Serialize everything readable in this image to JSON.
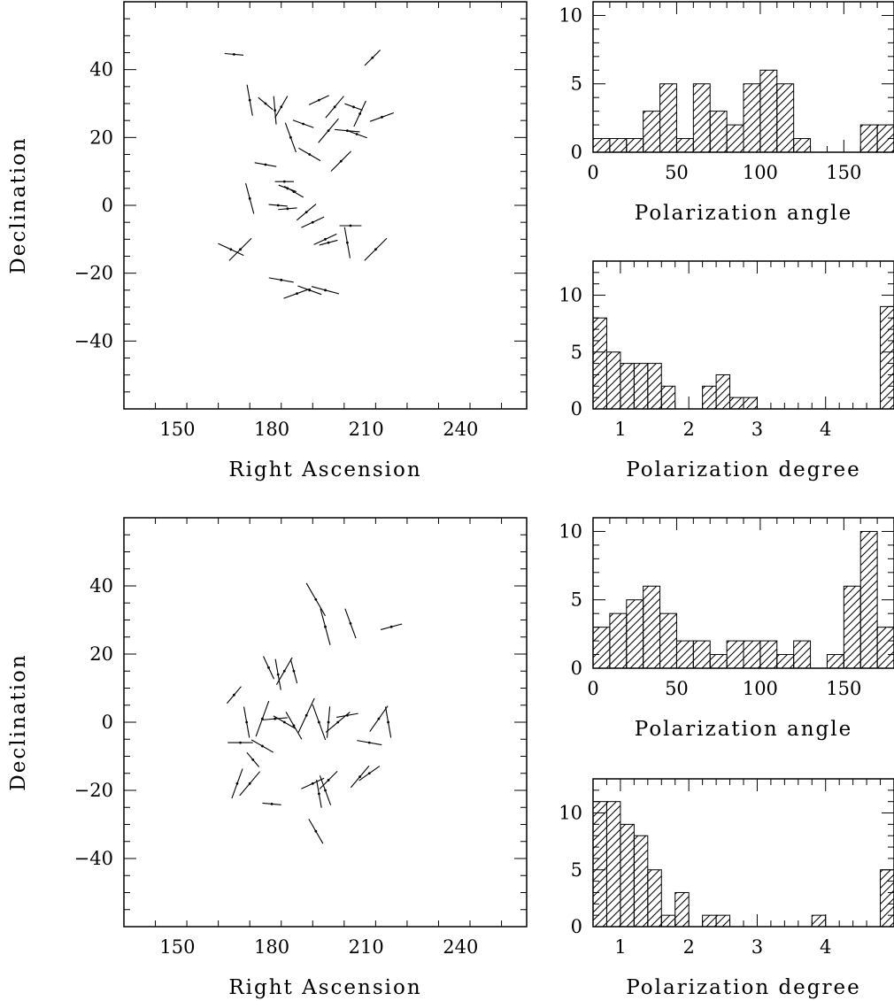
{
  "chart_data": [
    {
      "id": "sky-top",
      "type": "scatter",
      "marker": "polarization-vector",
      "xlabel": "Right Ascension",
      "ylabel": "Declination",
      "xlim": [
        133,
        261
      ],
      "ylim": [
        -60,
        60
      ],
      "xticks": [
        150,
        180,
        210,
        240
      ],
      "yticks": [
        -40,
        -20,
        0,
        20,
        40
      ],
      "vectors": [
        {
          "ra": 168,
          "dec": 44.5,
          "pa": 95,
          "len": 6
        },
        {
          "ra": 212,
          "dec": 43.5,
          "pa": 45,
          "len": 7
        },
        {
          "ra": 173,
          "dec": 31,
          "pa": 170,
          "len": 10
        },
        {
          "ra": 181,
          "dec": 28,
          "pa": 175,
          "len": 9
        },
        {
          "ra": 183,
          "dec": 29,
          "pa": 30,
          "len": 8
        },
        {
          "ra": 178,
          "dec": 30,
          "pa": 130,
          "len": 6
        },
        {
          "ra": 195,
          "dec": 31,
          "pa": 65,
          "len": 7
        },
        {
          "ra": 200,
          "dec": 29,
          "pa": 40,
          "len": 9
        },
        {
          "ra": 206,
          "dec": 29,
          "pa": 110,
          "len": 6
        },
        {
          "ra": 208,
          "dec": 27,
          "pa": 25,
          "len": 9
        },
        {
          "ra": 215,
          "dec": 26,
          "pa": 70,
          "len": 8
        },
        {
          "ra": 190,
          "dec": 24,
          "pa": 110,
          "len": 7
        },
        {
          "ra": 198,
          "dec": 22,
          "pa": 40,
          "len": 10
        },
        {
          "ra": 204,
          "dec": 22,
          "pa": 95,
          "len": 8
        },
        {
          "ra": 207,
          "dec": 21,
          "pa": 110,
          "len": 7
        },
        {
          "ra": 186,
          "dec": 20,
          "pa": 160,
          "len": 10
        },
        {
          "ra": 192,
          "dec": 15,
          "pa": 120,
          "len": 8
        },
        {
          "ra": 202,
          "dec": 13,
          "pa": 45,
          "len": 9
        },
        {
          "ra": 178,
          "dec": 12,
          "pa": 100,
          "len": 7
        },
        {
          "ra": 184,
          "dec": 7,
          "pa": 90,
          "len": 6
        },
        {
          "ra": 185,
          "dec": 5,
          "pa": 110,
          "len": 6
        },
        {
          "ra": 187,
          "dec": 4,
          "pa": 120,
          "len": 7
        },
        {
          "ra": 173,
          "dec": 2,
          "pa": 165,
          "len": 10
        },
        {
          "ra": 182,
          "dec": 0,
          "pa": 95,
          "len": 6
        },
        {
          "ra": 185,
          "dec": -1,
          "pa": 85,
          "len": 6
        },
        {
          "ra": 191,
          "dec": -2,
          "pa": 50,
          "len": 8
        },
        {
          "ra": 193,
          "dec": -5,
          "pa": 65,
          "len": 8
        },
        {
          "ra": 205,
          "dec": -6,
          "pa": 90,
          "len": 7
        },
        {
          "ra": 197,
          "dec": -10,
          "pa": 65,
          "len": 8
        },
        {
          "ra": 198,
          "dec": -11,
          "pa": 75,
          "len": 6
        },
        {
          "ra": 204,
          "dec": -11,
          "pa": 170,
          "len": 10
        },
        {
          "ra": 213,
          "dec": -13,
          "pa": 45,
          "len": 10
        },
        {
          "ra": 167,
          "dec": -13,
          "pa": 115,
          "len": 9
        },
        {
          "ra": 170,
          "dec": -13,
          "pa": 45,
          "len": 10
        },
        {
          "ra": 183,
          "dec": -22,
          "pa": 100,
          "len": 8
        },
        {
          "ra": 188,
          "dec": -26,
          "pa": 70,
          "len": 9
        },
        {
          "ra": 192,
          "dec": -25,
          "pa": 110,
          "len": 8
        },
        {
          "ra": 197,
          "dec": -25,
          "pa": 105,
          "len": 9
        }
      ]
    },
    {
      "id": "angle-top",
      "type": "bar",
      "style": "histogram-hatched",
      "xlabel": "Polarization angle",
      "xlim": [
        0,
        180
      ],
      "ylim": [
        0,
        11
      ],
      "xticks": [
        0,
        50,
        100,
        150
      ],
      "yticks": [
        0,
        5,
        10
      ],
      "bin_width": 10,
      "bin_starts": [
        0,
        10,
        20,
        30,
        40,
        50,
        60,
        70,
        80,
        90,
        100,
        110,
        120,
        130,
        140,
        150,
        160,
        170
      ],
      "values": [
        1,
        1,
        1,
        3,
        5,
        1,
        5,
        3,
        2,
        5,
        6,
        5,
        1,
        0,
        0,
        0,
        2,
        2
      ]
    },
    {
      "id": "degree-top",
      "type": "bar",
      "style": "histogram-hatched",
      "xlabel": "Polarization degree",
      "xlim": [
        0.6,
        5.0
      ],
      "ylim": [
        0,
        13
      ],
      "xticks": [
        1,
        2,
        3,
        4
      ],
      "yticks": [
        0,
        5,
        10
      ],
      "bin_width": 0.2,
      "bin_starts": [
        0.6,
        0.8,
        1.0,
        1.2,
        1.4,
        1.6,
        1.8,
        2.0,
        2.2,
        2.4,
        2.6,
        2.8,
        3.0,
        3.2,
        3.4,
        3.6,
        3.8,
        4.0,
        4.2,
        4.4,
        4.6,
        4.8
      ],
      "values": [
        8,
        5,
        4,
        4,
        4,
        2,
        0,
        0,
        2,
        3,
        1,
        1,
        0,
        0,
        0,
        0,
        0,
        0,
        0,
        0,
        0,
        9
      ]
    },
    {
      "id": "sky-bottom",
      "type": "scatter",
      "marker": "polarization-vector",
      "xlabel": "Right Ascension",
      "ylabel": "Declination",
      "xlim": [
        133,
        261
      ],
      "ylim": [
        -60,
        60
      ],
      "xticks": [
        150,
        180,
        210,
        240
      ],
      "yticks": [
        -40,
        -20,
        0,
        20,
        40
      ],
      "vectors": [
        {
          "ra": 194,
          "dec": 36,
          "pa": 150,
          "len": 12
        },
        {
          "ra": 197,
          "dec": 28,
          "pa": 165,
          "len": 12
        },
        {
          "ra": 205,
          "dec": 29,
          "pa": 160,
          "len": 10
        },
        {
          "ra": 218,
          "dec": 28,
          "pa": 75,
          "len": 7
        },
        {
          "ra": 179,
          "dec": 16,
          "pa": 155,
          "len": 8
        },
        {
          "ra": 182,
          "dec": 14,
          "pa": 170,
          "len": 10
        },
        {
          "ra": 184,
          "dec": 15,
          "pa": 30,
          "len": 10
        },
        {
          "ra": 187,
          "dec": 15,
          "pa": 165,
          "len": 8
        },
        {
          "ra": 168,
          "dec": 8,
          "pa": 40,
          "len": 7
        },
        {
          "ra": 172,
          "dec": 0,
          "pa": 170,
          "len": 10
        },
        {
          "ra": 177,
          "dec": 1,
          "pa": 20,
          "len": 12
        },
        {
          "ra": 181,
          "dec": 1,
          "pa": 85,
          "len": 8
        },
        {
          "ra": 184,
          "dec": 0,
          "pa": 120,
          "len": 8
        },
        {
          "ra": 187,
          "dec": -1,
          "pa": 150,
          "len": 10
        },
        {
          "ra": 191,
          "dec": 2,
          "pa": 25,
          "len": 12
        },
        {
          "ra": 195,
          "dec": 0,
          "pa": 160,
          "len": 12
        },
        {
          "ra": 198,
          "dec": 0,
          "pa": 5,
          "len": 10
        },
        {
          "ra": 201,
          "dec": 0,
          "pa": 50,
          "len": 10
        },
        {
          "ra": 204,
          "dec": 2,
          "pa": 80,
          "len": 7
        },
        {
          "ra": 211,
          "dec": -6,
          "pa": 100,
          "len": 8
        },
        {
          "ra": 214,
          "dec": 1,
          "pa": 35,
          "len": 10
        },
        {
          "ra": 217,
          "dec": 0,
          "pa": 170,
          "len": 10
        },
        {
          "ra": 170,
          "dec": -6,
          "pa": 90,
          "len": 8
        },
        {
          "ra": 177,
          "dec": -7,
          "pa": 120,
          "len": 8
        },
        {
          "ra": 174,
          "dec": -11,
          "pa": 140,
          "len": 6
        },
        {
          "ra": 173,
          "dec": -18,
          "pa": 40,
          "len": 10
        },
        {
          "ra": 169,
          "dec": -18,
          "pa": 20,
          "len": 10
        },
        {
          "ra": 180,
          "dec": -24,
          "pa": 95,
          "len": 6
        },
        {
          "ra": 193,
          "dec": -18,
          "pa": 65,
          "len": 8
        },
        {
          "ra": 198,
          "dec": -17,
          "pa": 45,
          "len": 8
        },
        {
          "ra": 195,
          "dec": -21,
          "pa": 170,
          "len": 9
        },
        {
          "ra": 197,
          "dec": -20,
          "pa": 160,
          "len": 10
        },
        {
          "ra": 208,
          "dec": -16,
          "pa": 40,
          "len": 9
        },
        {
          "ra": 211,
          "dec": -15,
          "pa": 55,
          "len": 8
        },
        {
          "ra": 194,
          "dec": -32,
          "pa": 150,
          "len": 9
        }
      ]
    },
    {
      "id": "angle-bottom",
      "type": "bar",
      "style": "histogram-hatched",
      "xlabel": "Polarization angle",
      "xlim": [
        0,
        180
      ],
      "ylim": [
        0,
        11
      ],
      "xticks": [
        0,
        50,
        100,
        150
      ],
      "yticks": [
        0,
        5,
        10
      ],
      "bin_width": 10,
      "bin_starts": [
        0,
        10,
        20,
        30,
        40,
        50,
        60,
        70,
        80,
        90,
        100,
        110,
        120,
        130,
        140,
        150,
        160,
        170
      ],
      "values": [
        3,
        4,
        5,
        6,
        4,
        2,
        2,
        1,
        2,
        2,
        2,
        1,
        2,
        0,
        1,
        6,
        10,
        3
      ]
    },
    {
      "id": "degree-bottom",
      "type": "bar",
      "style": "histogram-hatched",
      "xlabel": "Polarization degree",
      "xlim": [
        0.6,
        5.0
      ],
      "ylim": [
        0,
        13
      ],
      "xticks": [
        1,
        2,
        3,
        4
      ],
      "yticks": [
        0,
        5,
        10
      ],
      "bin_width": 0.2,
      "bin_starts": [
        0.6,
        0.8,
        1.0,
        1.2,
        1.4,
        1.6,
        1.8,
        2.0,
        2.2,
        2.4,
        2.6,
        2.8,
        3.0,
        3.2,
        3.4,
        3.6,
        3.8,
        4.0,
        4.2,
        4.4,
        4.6,
        4.8
      ],
      "values": [
        11,
        11,
        9,
        8,
        5,
        1,
        3,
        0,
        1,
        1,
        0,
        0,
        0,
        0,
        0,
        0,
        1,
        0,
        0,
        0,
        0,
        5
      ]
    }
  ]
}
